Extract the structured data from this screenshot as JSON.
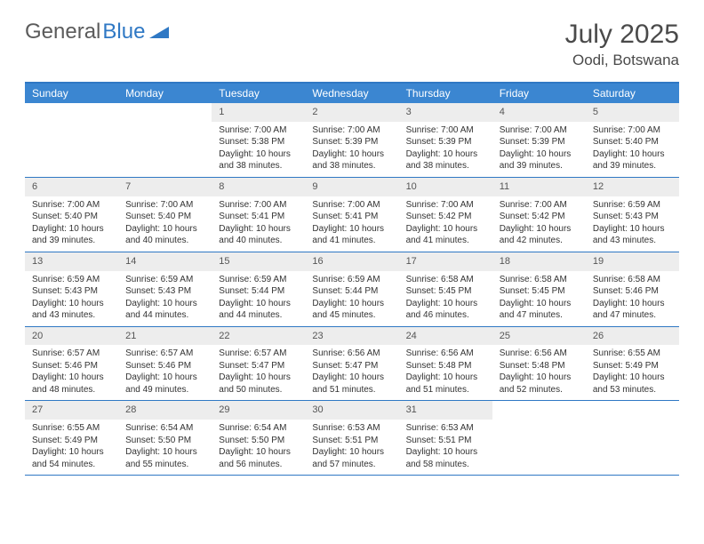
{
  "logo": {
    "text1": "General",
    "text2": "Blue"
  },
  "title": "July 2025",
  "location": "Oodi, Botswana",
  "colors": {
    "header_bg": "#3b86d1",
    "border": "#2f78c4",
    "daynum_bg": "#ededed",
    "text_muted": "#555555",
    "text_body": "#333333",
    "page_bg": "#ffffff"
  },
  "typography": {
    "body_fontsize": 10,
    "daynum_fontsize": 11,
    "header_fontsize": 12,
    "title_fontsize": 30,
    "location_fontsize": 17
  },
  "day_names": [
    "Sunday",
    "Monday",
    "Tuesday",
    "Wednesday",
    "Thursday",
    "Friday",
    "Saturday"
  ],
  "weeks": [
    [
      null,
      null,
      {
        "n": "1",
        "sr": "Sunrise: 7:00 AM",
        "ss": "Sunset: 5:38 PM",
        "dl": "Daylight: 10 hours and 38 minutes."
      },
      {
        "n": "2",
        "sr": "Sunrise: 7:00 AM",
        "ss": "Sunset: 5:39 PM",
        "dl": "Daylight: 10 hours and 38 minutes."
      },
      {
        "n": "3",
        "sr": "Sunrise: 7:00 AM",
        "ss": "Sunset: 5:39 PM",
        "dl": "Daylight: 10 hours and 38 minutes."
      },
      {
        "n": "4",
        "sr": "Sunrise: 7:00 AM",
        "ss": "Sunset: 5:39 PM",
        "dl": "Daylight: 10 hours and 39 minutes."
      },
      {
        "n": "5",
        "sr": "Sunrise: 7:00 AM",
        "ss": "Sunset: 5:40 PM",
        "dl": "Daylight: 10 hours and 39 minutes."
      }
    ],
    [
      {
        "n": "6",
        "sr": "Sunrise: 7:00 AM",
        "ss": "Sunset: 5:40 PM",
        "dl": "Daylight: 10 hours and 39 minutes."
      },
      {
        "n": "7",
        "sr": "Sunrise: 7:00 AM",
        "ss": "Sunset: 5:40 PM",
        "dl": "Daylight: 10 hours and 40 minutes."
      },
      {
        "n": "8",
        "sr": "Sunrise: 7:00 AM",
        "ss": "Sunset: 5:41 PM",
        "dl": "Daylight: 10 hours and 40 minutes."
      },
      {
        "n": "9",
        "sr": "Sunrise: 7:00 AM",
        "ss": "Sunset: 5:41 PM",
        "dl": "Daylight: 10 hours and 41 minutes."
      },
      {
        "n": "10",
        "sr": "Sunrise: 7:00 AM",
        "ss": "Sunset: 5:42 PM",
        "dl": "Daylight: 10 hours and 41 minutes."
      },
      {
        "n": "11",
        "sr": "Sunrise: 7:00 AM",
        "ss": "Sunset: 5:42 PM",
        "dl": "Daylight: 10 hours and 42 minutes."
      },
      {
        "n": "12",
        "sr": "Sunrise: 6:59 AM",
        "ss": "Sunset: 5:43 PM",
        "dl": "Daylight: 10 hours and 43 minutes."
      }
    ],
    [
      {
        "n": "13",
        "sr": "Sunrise: 6:59 AM",
        "ss": "Sunset: 5:43 PM",
        "dl": "Daylight: 10 hours and 43 minutes."
      },
      {
        "n": "14",
        "sr": "Sunrise: 6:59 AM",
        "ss": "Sunset: 5:43 PM",
        "dl": "Daylight: 10 hours and 44 minutes."
      },
      {
        "n": "15",
        "sr": "Sunrise: 6:59 AM",
        "ss": "Sunset: 5:44 PM",
        "dl": "Daylight: 10 hours and 44 minutes."
      },
      {
        "n": "16",
        "sr": "Sunrise: 6:59 AM",
        "ss": "Sunset: 5:44 PM",
        "dl": "Daylight: 10 hours and 45 minutes."
      },
      {
        "n": "17",
        "sr": "Sunrise: 6:58 AM",
        "ss": "Sunset: 5:45 PM",
        "dl": "Daylight: 10 hours and 46 minutes."
      },
      {
        "n": "18",
        "sr": "Sunrise: 6:58 AM",
        "ss": "Sunset: 5:45 PM",
        "dl": "Daylight: 10 hours and 47 minutes."
      },
      {
        "n": "19",
        "sr": "Sunrise: 6:58 AM",
        "ss": "Sunset: 5:46 PM",
        "dl": "Daylight: 10 hours and 47 minutes."
      }
    ],
    [
      {
        "n": "20",
        "sr": "Sunrise: 6:57 AM",
        "ss": "Sunset: 5:46 PM",
        "dl": "Daylight: 10 hours and 48 minutes."
      },
      {
        "n": "21",
        "sr": "Sunrise: 6:57 AM",
        "ss": "Sunset: 5:46 PM",
        "dl": "Daylight: 10 hours and 49 minutes."
      },
      {
        "n": "22",
        "sr": "Sunrise: 6:57 AM",
        "ss": "Sunset: 5:47 PM",
        "dl": "Daylight: 10 hours and 50 minutes."
      },
      {
        "n": "23",
        "sr": "Sunrise: 6:56 AM",
        "ss": "Sunset: 5:47 PM",
        "dl": "Daylight: 10 hours and 51 minutes."
      },
      {
        "n": "24",
        "sr": "Sunrise: 6:56 AM",
        "ss": "Sunset: 5:48 PM",
        "dl": "Daylight: 10 hours and 51 minutes."
      },
      {
        "n": "25",
        "sr": "Sunrise: 6:56 AM",
        "ss": "Sunset: 5:48 PM",
        "dl": "Daylight: 10 hours and 52 minutes."
      },
      {
        "n": "26",
        "sr": "Sunrise: 6:55 AM",
        "ss": "Sunset: 5:49 PM",
        "dl": "Daylight: 10 hours and 53 minutes."
      }
    ],
    [
      {
        "n": "27",
        "sr": "Sunrise: 6:55 AM",
        "ss": "Sunset: 5:49 PM",
        "dl": "Daylight: 10 hours and 54 minutes."
      },
      {
        "n": "28",
        "sr": "Sunrise: 6:54 AM",
        "ss": "Sunset: 5:50 PM",
        "dl": "Daylight: 10 hours and 55 minutes."
      },
      {
        "n": "29",
        "sr": "Sunrise: 6:54 AM",
        "ss": "Sunset: 5:50 PM",
        "dl": "Daylight: 10 hours and 56 minutes."
      },
      {
        "n": "30",
        "sr": "Sunrise: 6:53 AM",
        "ss": "Sunset: 5:51 PM",
        "dl": "Daylight: 10 hours and 57 minutes."
      },
      {
        "n": "31",
        "sr": "Sunrise: 6:53 AM",
        "ss": "Sunset: 5:51 PM",
        "dl": "Daylight: 10 hours and 58 minutes."
      },
      null,
      null
    ]
  ]
}
